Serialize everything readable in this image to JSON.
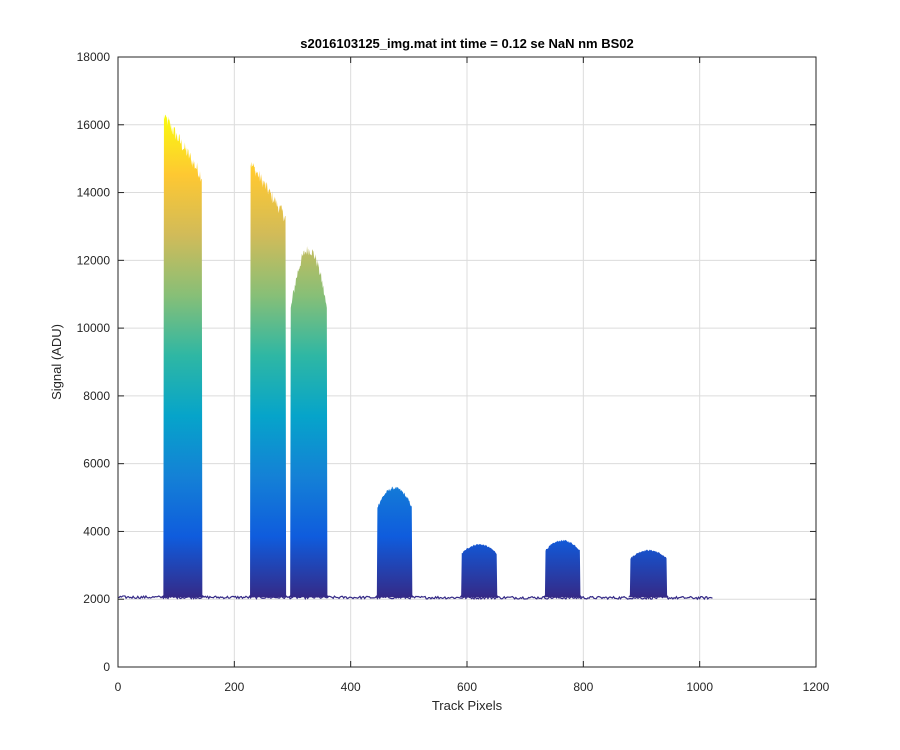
{
  "chart_data": {
    "type": "area",
    "title": "s2016103125_img.mat int time = 0.12 se  NaN nm BS02",
    "xlabel": "Track Pixels",
    "ylabel": "Signal (ADU)",
    "xlim": [
      0,
      1200
    ],
    "ylim": [
      0,
      18000
    ],
    "xticks": [
      0,
      200,
      400,
      600,
      800,
      1000,
      1200
    ],
    "yticks": [
      0,
      2000,
      4000,
      6000,
      8000,
      10000,
      12000,
      14000,
      16000,
      18000
    ],
    "grid": true,
    "colormap": "parula",
    "colormap_stops": [
      "#352a87",
      "#0f5cdd",
      "#1481d6",
      "#06a4ca",
      "#2eb7a4",
      "#87bf77",
      "#d1bb59",
      "#fec832",
      "#f9fb0e"
    ],
    "baseline": 2060,
    "pixel_range": [
      0,
      1023
    ],
    "peaks": [
      {
        "x_start": 78,
        "x_end": 145,
        "max": 16300
      },
      {
        "x_start": 227,
        "x_end": 289,
        "max": 14900
      },
      {
        "x_start": 296,
        "x_end": 360,
        "max": 12850
      },
      {
        "x_start": 445,
        "x_end": 506,
        "max": 5450
      },
      {
        "x_start": 590,
        "x_end": 652,
        "max": 3700
      },
      {
        "x_start": 734,
        "x_end": 795,
        "max": 3820
      },
      {
        "x_start": 880,
        "x_end": 944,
        "max": 3520
      }
    ]
  }
}
